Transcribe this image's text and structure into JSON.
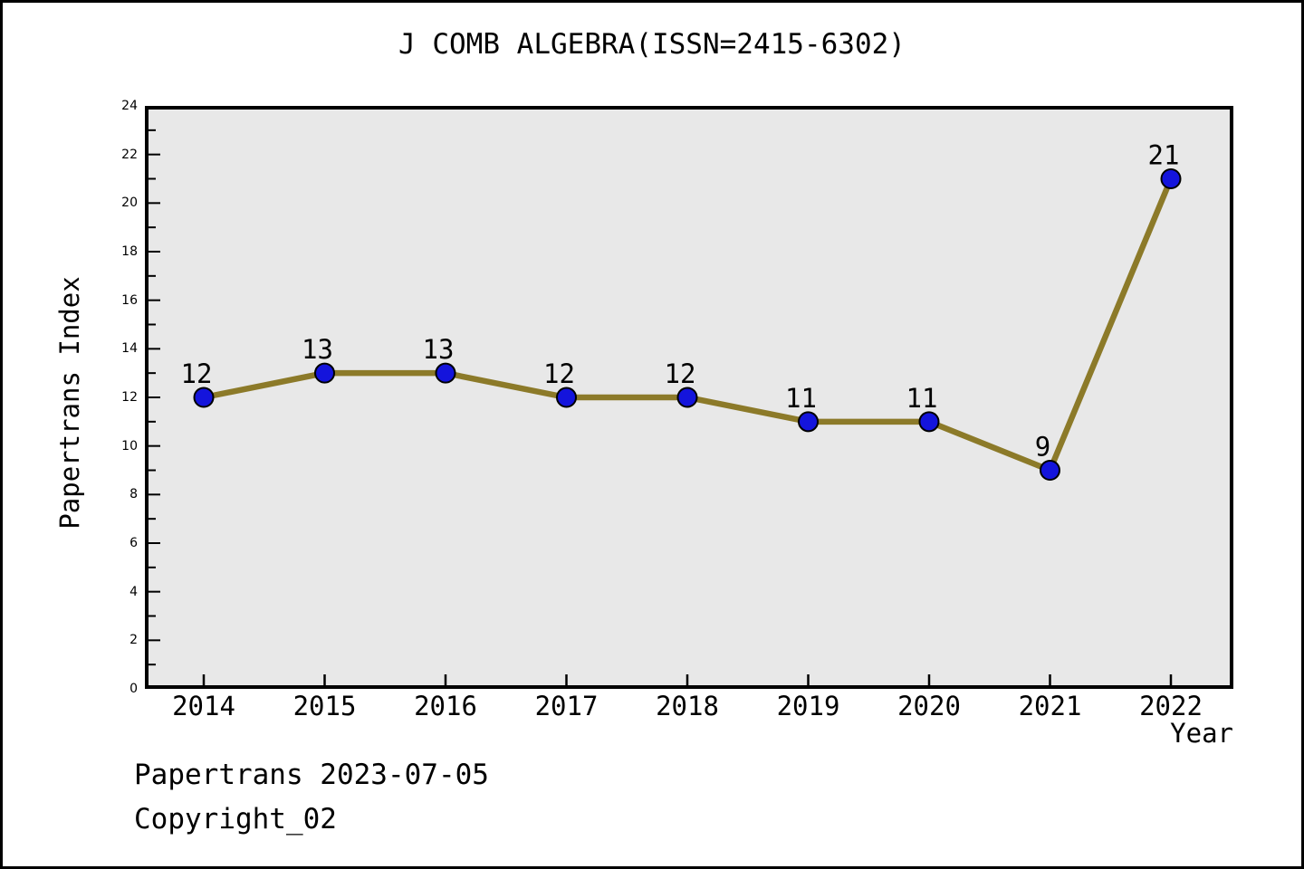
{
  "figure": {
    "title": "J COMB ALGEBRA(ISSN=2415-6302)",
    "footer": [
      "Papertrans 2023-07-05",
      "Copyright_02"
    ]
  },
  "chart_data": {
    "type": "line",
    "title": "J COMB ALGEBRA(ISSN=2415-6302)",
    "categories": [
      "2014",
      "2015",
      "2016",
      "2017",
      "2018",
      "2019",
      "2020",
      "2021",
      "2022"
    ],
    "series": [
      {
        "name": "Papertrans Index",
        "values": [
          12,
          13,
          13,
          12,
          12,
          11,
          11,
          9,
          21
        ]
      }
    ],
    "xlabel": "Year",
    "ylabel": "Papertrans Index",
    "ylim": [
      0,
      24
    ],
    "y_tick_step": 2,
    "y_minor_tick_step": 1,
    "grid": false,
    "legend_position": "none",
    "point_labels": true,
    "colors": {
      "line": "#8c7a29",
      "marker_fill": "#1414dc",
      "marker_edge": "#000000",
      "plot_background": "#e8e8e8",
      "figure_background": "#ffffff",
      "frame": "#000000",
      "text": "#000000"
    }
  }
}
